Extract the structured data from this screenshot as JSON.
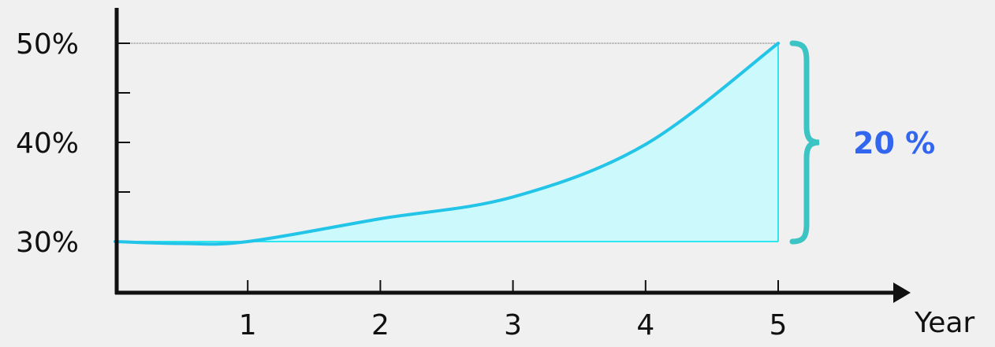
{
  "chart_data": {
    "type": "area",
    "title": "",
    "xlabel": "Year",
    "ylabel": "",
    "x": [
      0,
      1,
      2,
      3,
      4,
      5
    ],
    "y": [
      30,
      30,
      32.3,
      34.5,
      39.8,
      50
    ],
    "x_ticks": [
      "1",
      "2",
      "3",
      "4",
      "5"
    ],
    "y_ticks": [
      "30%",
      "40%",
      "50%"
    ],
    "xlim": [
      0,
      5
    ],
    "ylim": [
      25,
      55
    ],
    "grid": false,
    "reference_line": {
      "y": 50
    },
    "annotation": {
      "text": "20 %",
      "from": 30,
      "to": 50
    },
    "colors": {
      "line": "#22c4e8",
      "fill": "#ccfafc",
      "edge": "#2ee6ee",
      "brace": "#3cc4c4",
      "annotation": "#3366ee",
      "axis": "#111111"
    }
  }
}
